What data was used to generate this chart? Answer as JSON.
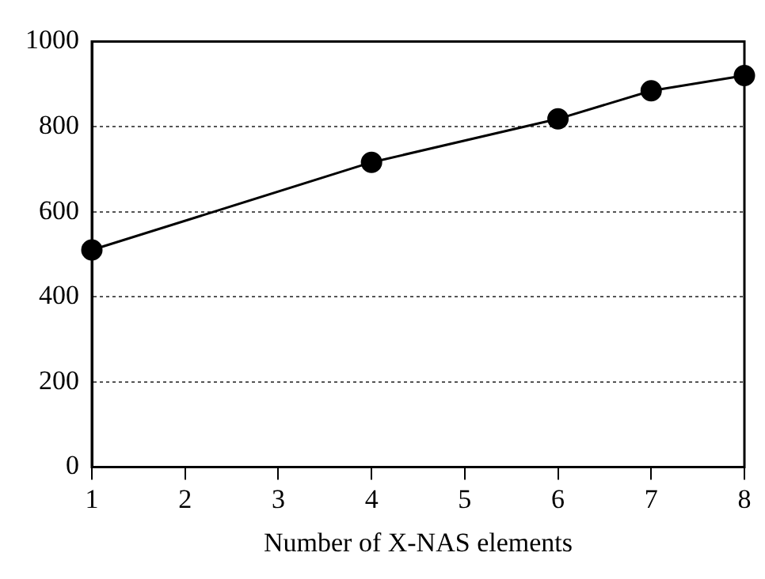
{
  "chart_data": {
    "type": "line",
    "xlabel": "Number of X-NAS elements",
    "x": [
      1,
      4,
      6,
      7,
      8
    ],
    "series": [
      {
        "color": "#000000",
        "values": [
          510,
          716,
          818,
          884,
          920
        ]
      }
    ],
    "xlim": [
      1,
      8
    ],
    "xticks": [
      1,
      2,
      3,
      4,
      5,
      6,
      7,
      8
    ],
    "ylim": [
      0,
      1000
    ],
    "yticks": [
      0,
      200,
      400,
      600,
      800,
      1000
    ],
    "grid": "y",
    "marker": "circle",
    "line_style": "solid",
    "legend": false
  }
}
